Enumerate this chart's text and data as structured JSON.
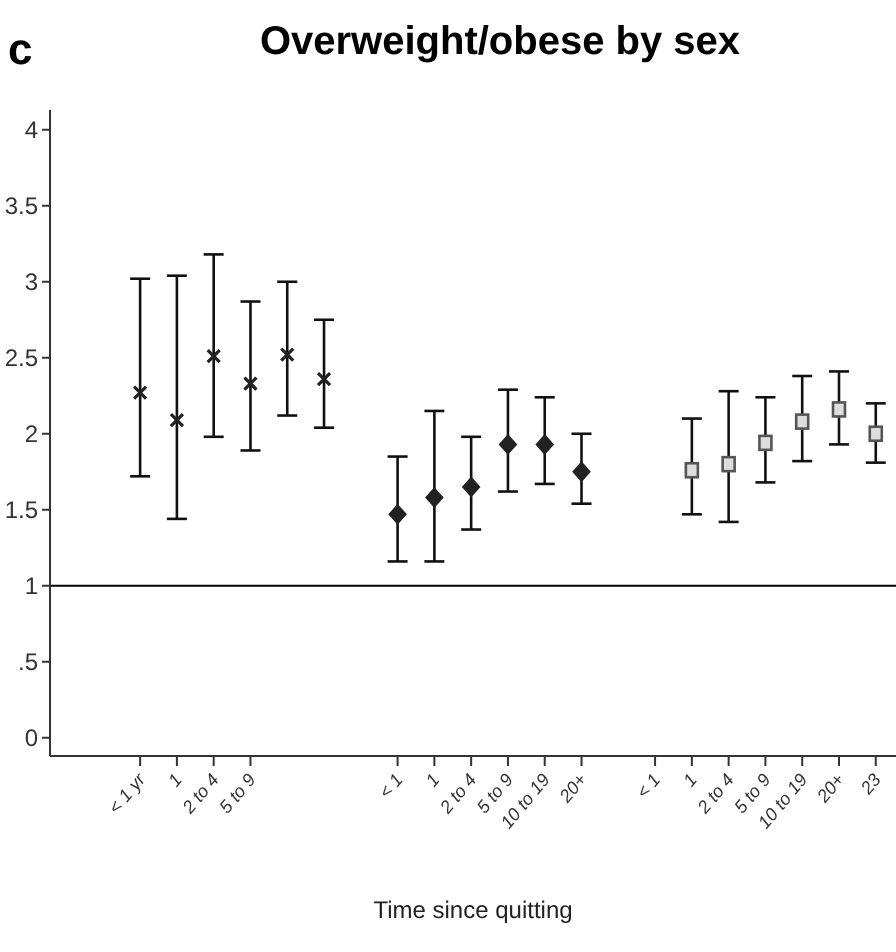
{
  "chart_data": {
    "type": "scatter",
    "title": "Overweight/obese by sex",
    "xlabel": "Time since quitting",
    "annotations": [
      "c"
    ],
    "categories": [
      "< 1 yr",
      "1",
      "2 to 4",
      "5 to 9",
      null,
      null,
      null,
      "< 1",
      "1",
      "2 to 4",
      "5 to 9",
      "10 to 19",
      "20+",
      null,
      "< 1",
      "1",
      "2 to 4",
      "5 to 9",
      "10 to 19",
      "20+",
      "23"
    ],
    "ylim": [
      -0.12,
      4.13
    ],
    "yticks": [
      0,
      {
        "value": 0.5,
        "label": ".5"
      },
      1,
      1.5,
      2,
      2.5,
      3,
      3.5,
      4
    ],
    "ref_lines": [
      {
        "axis": "y",
        "value": 1,
        "color": "#000000"
      }
    ],
    "grid": false,
    "legend": false,
    "series": [
      {
        "color": "#222222",
        "marker": "cross",
        "values": [
          2.27,
          2.09,
          2.51,
          2.33,
          2.52,
          2.36,
          null,
          null,
          null,
          null,
          null,
          null,
          null,
          null,
          null,
          null,
          null,
          null,
          null,
          null,
          null
        ],
        "errors": [
          [
            1.72,
            3.02
          ],
          [
            1.44,
            3.04
          ],
          [
            1.98,
            3.18
          ],
          [
            1.89,
            2.87
          ],
          [
            2.12,
            3.0
          ],
          [
            2.04,
            2.75
          ],
          null,
          null,
          null,
          null,
          null,
          null,
          null,
          null,
          null,
          null,
          null,
          null,
          null,
          null,
          null
        ]
      },
      {
        "color": "#222222",
        "marker": "diamond",
        "values": [
          null,
          null,
          null,
          null,
          null,
          null,
          null,
          1.47,
          1.58,
          1.65,
          1.93,
          1.93,
          1.75,
          null,
          null,
          null,
          null,
          null,
          null,
          null,
          null
        ],
        "errors": [
          null,
          null,
          null,
          null,
          null,
          null,
          null,
          [
            1.16,
            1.85
          ],
          [
            1.16,
            2.15
          ],
          [
            1.37,
            1.98
          ],
          [
            1.62,
            2.29
          ],
          [
            1.67,
            2.24
          ],
          [
            1.54,
            2.0
          ],
          null,
          null,
          null,
          null,
          null,
          null,
          null,
          null
        ]
      },
      {
        "color": "#555555",
        "marker": "square",
        "values": [
          null,
          null,
          null,
          null,
          null,
          null,
          null,
          null,
          null,
          null,
          null,
          null,
          null,
          null,
          null,
          1.76,
          1.8,
          1.94,
          2.08,
          2.16,
          2.0
        ],
        "errors": [
          null,
          null,
          null,
          null,
          null,
          null,
          null,
          null,
          null,
          null,
          null,
          null,
          null,
          null,
          null,
          [
            1.47,
            2.1
          ],
          [
            1.42,
            2.28
          ],
          [
            1.68,
            2.24
          ],
          [
            1.82,
            2.38
          ],
          [
            1.93,
            2.41
          ],
          [
            1.81,
            2.2
          ]
        ]
      }
    ]
  }
}
